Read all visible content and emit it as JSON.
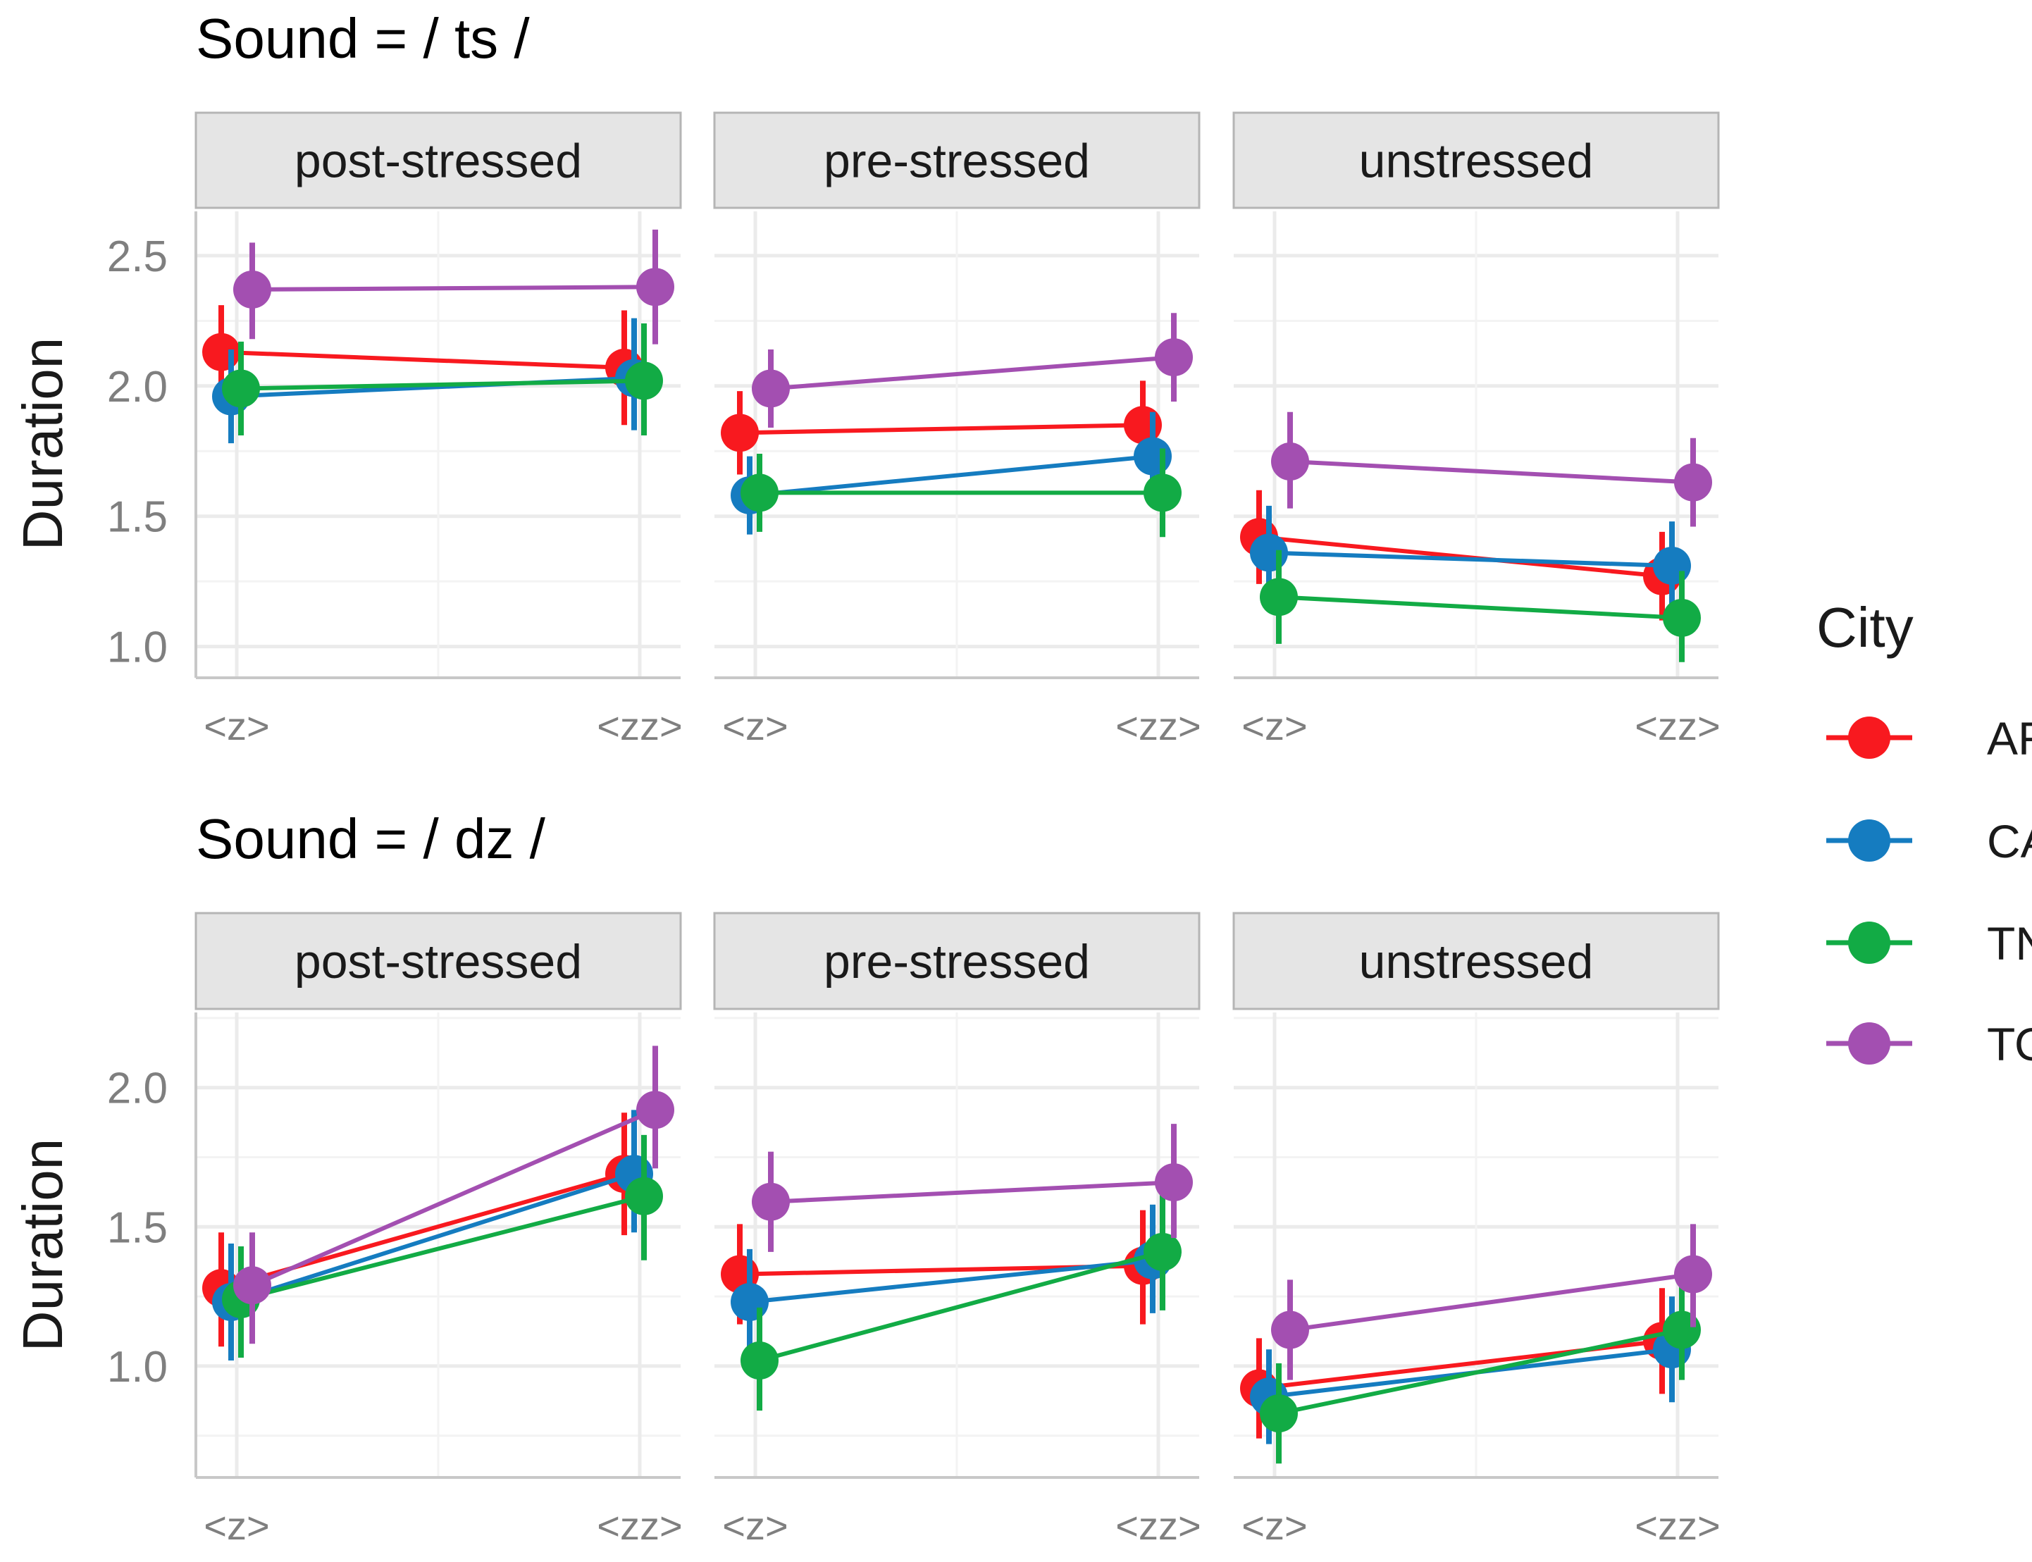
{
  "chart_data": {
    "type": "line",
    "x_categories": [
      "<z>",
      "<zz>"
    ],
    "facets": [
      "post-stressed",
      "pre-stressed",
      "unstressed"
    ],
    "ylabel": "Duration",
    "legend": {
      "title": "City",
      "placement": "right",
      "entries": [
        {
          "name": "AR",
          "color": "#f8191f"
        },
        {
          "name": "CA",
          "color": "#157cc0"
        },
        {
          "name": "TN",
          "color": "#12ab45"
        },
        {
          "name": "TO",
          "color": "#a34fb1"
        }
      ]
    },
    "blocks": [
      {
        "title": "Sound = / ts /",
        "ylim": [
          0.88,
          2.67
        ],
        "yticks": [
          1.0,
          1.5,
          2.0,
          2.5
        ],
        "yticklabels": [
          "1.0",
          "1.5",
          "2.0",
          "2.5"
        ],
        "panels": [
          {
            "facet": "post-stressed",
            "series": [
              {
                "city": "AR",
                "values": [
                  2.13,
                  2.07
                ],
                "lower": [
                  1.96,
                  1.85
                ],
                "upper": [
                  2.31,
                  2.29
                ]
              },
              {
                "city": "CA",
                "values": [
                  1.96,
                  2.03
                ],
                "lower": [
                  1.78,
                  1.83
                ],
                "upper": [
                  2.14,
                  2.26
                ]
              },
              {
                "city": "TN",
                "values": [
                  1.99,
                  2.02
                ],
                "lower": [
                  1.81,
                  1.81
                ],
                "upper": [
                  2.17,
                  2.24
                ]
              },
              {
                "city": "TO",
                "values": [
                  2.37,
                  2.38
                ],
                "lower": [
                  2.18,
                  2.16
                ],
                "upper": [
                  2.55,
                  2.6
                ]
              }
            ]
          },
          {
            "facet": "pre-stressed",
            "series": [
              {
                "city": "AR",
                "values": [
                  1.82,
                  1.85
                ],
                "lower": [
                  1.66,
                  1.68
                ],
                "upper": [
                  1.98,
                  2.02
                ]
              },
              {
                "city": "CA",
                "values": [
                  1.58,
                  1.73
                ],
                "lower": [
                  1.43,
                  1.56
                ],
                "upper": [
                  1.73,
                  1.9
                ]
              },
              {
                "city": "TN",
                "values": [
                  1.59,
                  1.59
                ],
                "lower": [
                  1.44,
                  1.42
                ],
                "upper": [
                  1.74,
                  1.76
                ]
              },
              {
                "city": "TO",
                "values": [
                  1.99,
                  2.11
                ],
                "lower": [
                  1.84,
                  1.94
                ],
                "upper": [
                  2.14,
                  2.28
                ]
              }
            ]
          },
          {
            "facet": "unstressed",
            "series": [
              {
                "city": "AR",
                "values": [
                  1.42,
                  1.27
                ],
                "lower": [
                  1.24,
                  1.1
                ],
                "upper": [
                  1.6,
                  1.44
                ]
              },
              {
                "city": "CA",
                "values": [
                  1.36,
                  1.31
                ],
                "lower": [
                  1.18,
                  1.14
                ],
                "upper": [
                  1.54,
                  1.48
                ]
              },
              {
                "city": "TN",
                "values": [
                  1.19,
                  1.11
                ],
                "lower": [
                  1.01,
                  0.94
                ],
                "upper": [
                  1.37,
                  1.29
                ]
              },
              {
                "city": "TO",
                "values": [
                  1.71,
                  1.63
                ],
                "lower": [
                  1.53,
                  1.46
                ],
                "upper": [
                  1.9,
                  1.8
                ]
              }
            ]
          }
        ]
      },
      {
        "title": "Sound = / dz /",
        "ylim": [
          0.6,
          2.27
        ],
        "yticks": [
          1.0,
          1.5,
          2.0
        ],
        "yticklabels": [
          "1.0",
          "1.5",
          "2.0"
        ],
        "panels": [
          {
            "facet": "post-stressed",
            "series": [
              {
                "city": "AR",
                "values": [
                  1.28,
                  1.69
                ],
                "lower": [
                  1.07,
                  1.47
                ],
                "upper": [
                  1.48,
                  1.91
                ]
              },
              {
                "city": "CA",
                "values": [
                  1.23,
                  1.69
                ],
                "lower": [
                  1.02,
                  1.48
                ],
                "upper": [
                  1.44,
                  1.92
                ]
              },
              {
                "city": "TN",
                "values": [
                  1.24,
                  1.61
                ],
                "lower": [
                  1.03,
                  1.38
                ],
                "upper": [
                  1.43,
                  1.83
                ]
              },
              {
                "city": "TO",
                "values": [
                  1.29,
                  1.92
                ],
                "lower": [
                  1.08,
                  1.71
                ],
                "upper": [
                  1.48,
                  2.15
                ]
              }
            ]
          },
          {
            "facet": "pre-stressed",
            "series": [
              {
                "city": "AR",
                "values": [
                  1.33,
                  1.36
                ],
                "lower": [
                  1.15,
                  1.15
                ],
                "upper": [
                  1.51,
                  1.56
                ]
              },
              {
                "city": "CA",
                "values": [
                  1.23,
                  1.38
                ],
                "lower": [
                  1.04,
                  1.19
                ],
                "upper": [
                  1.42,
                  1.58
                ]
              },
              {
                "city": "TN",
                "values": [
                  1.02,
                  1.41
                ],
                "lower": [
                  0.84,
                  1.2
                ],
                "upper": [
                  1.21,
                  1.62
                ]
              },
              {
                "city": "TO",
                "values": [
                  1.59,
                  1.66
                ],
                "lower": [
                  1.41,
                  1.46
                ],
                "upper": [
                  1.77,
                  1.87
                ]
              }
            ]
          },
          {
            "facet": "unstressed",
            "series": [
              {
                "city": "AR",
                "values": [
                  0.92,
                  1.09
                ],
                "lower": [
                  0.74,
                  0.9
                ],
                "upper": [
                  1.1,
                  1.28
                ]
              },
              {
                "city": "CA",
                "values": [
                  0.89,
                  1.06
                ],
                "lower": [
                  0.72,
                  0.87
                ],
                "upper": [
                  1.06,
                  1.25
                ]
              },
              {
                "city": "TN",
                "values": [
                  0.83,
                  1.13
                ],
                "lower": [
                  0.65,
                  0.95
                ],
                "upper": [
                  1.01,
                  1.32
                ]
              },
              {
                "city": "TO",
                "values": [
                  1.13,
                  1.33
                ],
                "lower": [
                  0.95,
                  1.14
                ],
                "upper": [
                  1.31,
                  1.51
                ]
              }
            ]
          }
        ]
      }
    ]
  }
}
